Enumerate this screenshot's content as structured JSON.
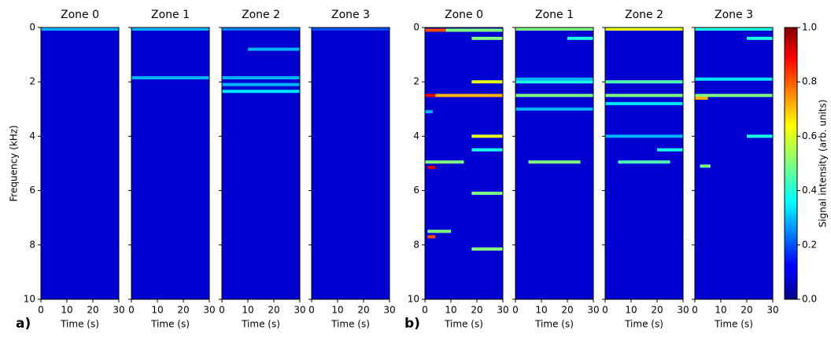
{
  "chart_data": {
    "type": "heatmap",
    "xlim": [
      0,
      30
    ],
    "xticks": [
      0,
      10,
      20,
      30
    ],
    "ylim": [
      0,
      10
    ],
    "yticks": [
      0,
      2,
      4,
      6,
      8,
      10
    ],
    "xlabel": "Time (s)",
    "ylabel": "Frequency (kHz)",
    "background": 0.08,
    "colorbar": {
      "label": "Signal intensity (arb. units)",
      "lim": [
        0,
        1
      ],
      "ticks": [
        {
          "value": 0,
          "label": "0.0"
        },
        {
          "value": 0.2,
          "label": "0.2"
        },
        {
          "value": 0.4,
          "label": "0.4"
        },
        {
          "value": 0.6,
          "label": "0.6"
        },
        {
          "value": 0.8,
          "label": "0.8"
        },
        {
          "value": 1,
          "label": "1.0"
        }
      ]
    },
    "groups": [
      {
        "label": "a)",
        "panels": [
          {
            "title": "Zone 0",
            "features": [
              [
                0,
                30,
                0.05,
                0.3
              ]
            ]
          },
          {
            "title": "Zone 1",
            "features": [
              [
                0,
                30,
                0.05,
                0.3
              ],
              [
                0,
                30,
                1.85,
                0.3
              ]
            ]
          },
          {
            "title": "Zone 2",
            "features": [
              [
                0,
                30,
                0.05,
                0.25
              ],
              [
                10,
                30,
                0.8,
                0.3
              ],
              [
                0,
                30,
                1.85,
                0.3
              ],
              [
                0,
                30,
                2.1,
                0.3
              ],
              [
                0,
                30,
                2.35,
                0.35
              ]
            ]
          },
          {
            "title": "Zone 3",
            "features": [
              [
                0,
                30,
                0.05,
                0.2
              ]
            ]
          }
        ]
      },
      {
        "label": "b)",
        "panels": [
          {
            "title": "Zone 0",
            "features": [
              [
                0,
                8,
                0.1,
                0.8
              ],
              [
                8,
                30,
                0.1,
                0.5
              ],
              [
                0,
                30,
                2.5,
                0.7
              ],
              [
                0,
                4,
                2.5,
                0.9
              ],
              [
                18,
                30,
                2.0,
                0.6
              ],
              [
                18,
                30,
                0.4,
                0.5
              ],
              [
                18,
                30,
                4.0,
                0.6
              ],
              [
                18,
                30,
                4.5,
                0.4
              ],
              [
                0,
                15,
                4.95,
                0.5
              ],
              [
                1,
                4,
                5.15,
                0.9
              ],
              [
                18,
                30,
                6.1,
                0.5
              ],
              [
                1,
                10,
                7.5,
                0.5
              ],
              [
                1,
                4,
                7.7,
                0.8
              ],
              [
                18,
                30,
                8.15,
                0.5
              ],
              [
                0,
                3,
                3.1,
                0.3
              ]
            ]
          },
          {
            "title": "Zone 1",
            "features": [
              [
                0,
                30,
                0.05,
                0.5
              ],
              [
                0,
                30,
                2.0,
                0.4
              ],
              [
                0,
                30,
                2.5,
                0.5
              ],
              [
                0,
                30,
                1.9,
                0.3
              ],
              [
                5,
                25,
                4.95,
                0.5
              ],
              [
                20,
                30,
                0.4,
                0.4
              ],
              [
                0,
                30,
                3.0,
                0.3
              ]
            ]
          },
          {
            "title": "Zone 2",
            "features": [
              [
                0,
                30,
                0.05,
                0.6
              ],
              [
                0,
                30,
                2.0,
                0.45
              ],
              [
                0,
                30,
                2.5,
                0.5
              ],
              [
                0,
                30,
                2.8,
                0.35
              ],
              [
                0,
                30,
                4.0,
                0.3
              ],
              [
                5,
                25,
                4.95,
                0.45
              ],
              [
                20,
                30,
                4.5,
                0.4
              ]
            ]
          },
          {
            "title": "Zone 3",
            "features": [
              [
                0,
                30,
                0.05,
                0.4
              ],
              [
                0,
                30,
                1.9,
                0.35
              ],
              [
                0,
                30,
                2.5,
                0.5
              ],
              [
                0,
                5,
                2.6,
                0.7
              ],
              [
                20,
                30,
                4.0,
                0.4
              ],
              [
                20,
                30,
                0.4,
                0.4
              ],
              [
                2,
                6,
                5.1,
                0.5
              ]
            ]
          }
        ]
      }
    ]
  }
}
